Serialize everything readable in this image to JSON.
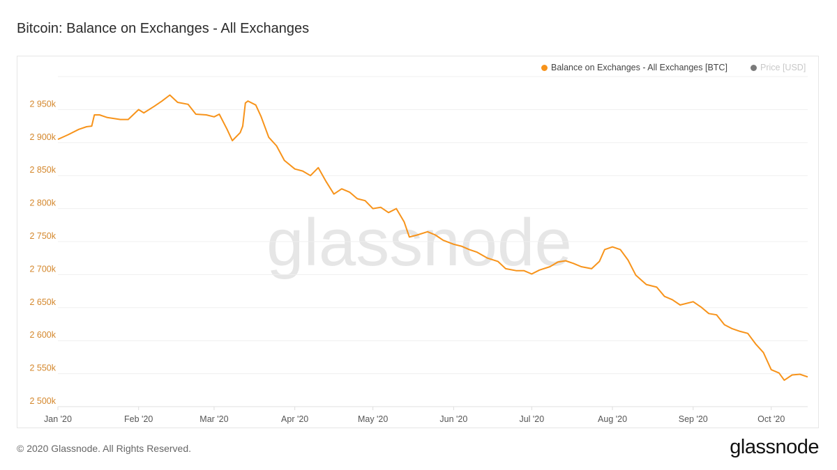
{
  "title": "Bitcoin: Balance on Exchanges - All Exchanges",
  "footer": "© 2020 Glassnode. All Rights Reserved.",
  "logo": "glassnode",
  "watermark": "glassnode",
  "colors": {
    "series": "#f7931a",
    "price": "#7a7a7a",
    "axis_label": "#d4872c"
  },
  "chart_data": {
    "type": "line",
    "title": "Bitcoin: Balance on Exchanges - All Exchanges",
    "xlabel": "",
    "ylabel": "",
    "ylim": [
      2500,
      3000
    ],
    "y_unit": "k BTC",
    "yticks": [
      2500,
      2550,
      2600,
      2650,
      2700,
      2750,
      2800,
      2850,
      2900,
      2950
    ],
    "ytick_labels": [
      "2 500k",
      "2 550k",
      "2 600k",
      "2 650k",
      "2 700k",
      "2 750k",
      "2 800k",
      "2 850k",
      "2 900k",
      "2 950k"
    ],
    "xticks": [
      {
        "day": 0,
        "label": "Jan '20"
      },
      {
        "day": 31,
        "label": "Feb '20"
      },
      {
        "day": 60,
        "label": "Mar '20"
      },
      {
        "day": 91,
        "label": "Apr '20"
      },
      {
        "day": 121,
        "label": "May '20"
      },
      {
        "day": 152,
        "label": "Jun '20"
      },
      {
        "day": 182,
        "label": "Jul '20"
      },
      {
        "day": 213,
        "label": "Aug '20"
      },
      {
        "day": 244,
        "label": "Sep '20"
      },
      {
        "day": 274,
        "label": "Oct '20"
      }
    ],
    "xlim_days": [
      0,
      288
    ],
    "grid": true,
    "legend_position": "top-right",
    "legend": [
      {
        "label": "Balance on Exchanges - All Exchanges [BTC]",
        "active": true
      },
      {
        "label": "Price [USD]",
        "active": false
      }
    ],
    "series": [
      {
        "name": "Balance on Exchanges - All Exchanges [BTC]",
        "x_day": [
          0,
          4,
          8,
          11,
          13,
          14,
          16,
          19,
          24,
          27,
          31,
          33,
          37,
          40,
          43,
          46,
          50,
          53,
          57,
          60,
          62,
          65,
          67,
          70,
          71,
          72,
          73,
          76,
          78,
          81,
          84,
          87,
          91,
          94,
          97,
          100,
          103,
          106,
          109,
          112,
          115,
          118,
          121,
          124,
          127,
          130,
          133,
          135,
          138,
          142,
          145,
          148,
          152,
          155,
          158,
          161,
          165,
          169,
          172,
          176,
          179,
          182,
          185,
          189,
          192,
          195,
          198,
          201,
          205,
          208,
          210,
          213,
          216,
          219,
          222,
          226,
          230,
          233,
          236,
          239,
          244,
          247,
          250,
          253,
          256,
          259,
          262,
          265,
          268,
          271,
          274,
          277,
          279,
          282,
          285,
          288
        ],
        "values": [
          2905,
          2912,
          2920,
          2924,
          2925,
          2942,
          2942,
          2938,
          2935,
          2935,
          2950,
          2945,
          2955,
          2963,
          2972,
          2961,
          2958,
          2943,
          2942,
          2939,
          2943,
          2920,
          2903,
          2915,
          2925,
          2960,
          2963,
          2957,
          2940,
          2908,
          2895,
          2873,
          2860,
          2857,
          2850,
          2862,
          2841,
          2822,
          2830,
          2825,
          2815,
          2812,
          2800,
          2802,
          2794,
          2800,
          2780,
          2757,
          2760,
          2765,
          2760,
          2752,
          2746,
          2743,
          2738,
          2734,
          2725,
          2720,
          2709,
          2706,
          2706,
          2701,
          2707,
          2712,
          2719,
          2721,
          2717,
          2712,
          2709,
          2720,
          2738,
          2742,
          2738,
          2722,
          2699,
          2685,
          2681,
          2667,
          2662,
          2654,
          2659,
          2651,
          2641,
          2639,
          2624,
          2618,
          2614,
          2611,
          2595,
          2582,
          2556,
          2551,
          2540,
          2548,
          2549,
          2545
        ]
      }
    ]
  }
}
